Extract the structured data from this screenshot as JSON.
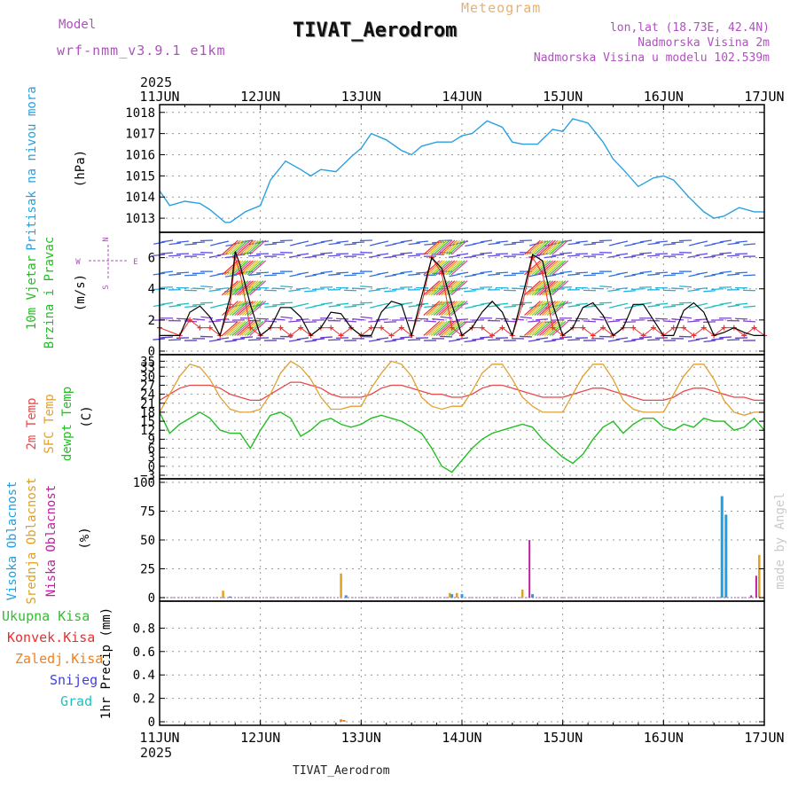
{
  "header": {
    "model_label": "Model",
    "model_name": "wrf-nmm_v3.9.1 e1km",
    "subtitle": "Meteogram",
    "title": "TIVAT_Aerodrom",
    "coords": "lon,lat (18.73E, 42.4N)",
    "elevation": "Nadmorska Visina 2m",
    "model_elevation": "Nadmorska Visina u modelu 102.539m",
    "footer_title": "TIVAT_Aerodrom",
    "watermark": "made by Angel"
  },
  "time_axis": {
    "year": "2025",
    "ticks": [
      "11JUN",
      "12JUN",
      "13JUN",
      "14JUN",
      "15JUN",
      "16JUN",
      "17JUN"
    ]
  },
  "colors": {
    "pressure": "#2aa0e0",
    "temp2m": "#e84848",
    "sfc_temp": "#e0a030",
    "dewpoint": "#20c020",
    "wind_speed": "#000000",
    "gust": "#e83030",
    "high_cloud": "#20a0e0",
    "mid_cloud": "#e0a020",
    "low_cloud": "#c020a0",
    "total_precip": "#30c030",
    "conv_precip": "#e83030",
    "freezing_precip": "#f08020",
    "snow": "#4040e0",
    "graupel": "#20c0c0",
    "title_purple": "#b050c0",
    "meteogram_orange": "#e8b070"
  },
  "chart_data": [
    {
      "type": "line",
      "panel": "pressure",
      "ylabel_name": "Pritisak na nivou mora",
      "ylabel_unit": "(hPa)",
      "yticks": [
        "1013",
        "1014",
        "1015",
        "1016",
        "1017",
        "1018"
      ],
      "ylim": [
        1012.5,
        1018.2
      ],
      "grid": true,
      "x_days": [
        0,
        0.1,
        0.25,
        0.4,
        0.5,
        0.65,
        0.7,
        0.85,
        1.0,
        1.1,
        1.25,
        1.4,
        1.5,
        1.6,
        1.75,
        1.9,
        2.0,
        2.1,
        2.25,
        2.4,
        2.5,
        2.6,
        2.75,
        2.9,
        3.0,
        3.1,
        3.25,
        3.4,
        3.5,
        3.6,
        3.75,
        3.9,
        4.0,
        4.1,
        4.25,
        4.4,
        4.5,
        4.6,
        4.75,
        4.9,
        5.0,
        5.1,
        5.25,
        5.4,
        5.5,
        5.6,
        5.75,
        5.9,
        6.0
      ],
      "series": [
        {
          "color_key": "pressure",
          "values": [
            1014.3,
            1013.6,
            1013.8,
            1013.7,
            1013.4,
            1012.8,
            1012.8,
            1013.3,
            1013.6,
            1014.8,
            1015.7,
            1015.3,
            1015.0,
            1015.3,
            1015.2,
            1015.9,
            1016.3,
            1017.0,
            1016.7,
            1016.2,
            1016.0,
            1016.4,
            1016.6,
            1016.6,
            1016.9,
            1017.0,
            1017.6,
            1017.3,
            1016.6,
            1016.5,
            1016.5,
            1017.2,
            1017.1,
            1017.7,
            1017.5,
            1016.6,
            1015.8,
            1015.3,
            1014.5,
            1014.9,
            1015.0,
            1014.8,
            1014.0,
            1013.3,
            1013.0,
            1013.1,
            1013.5,
            1013.3,
            1013.3
          ]
        }
      ]
    },
    {
      "type": "line",
      "panel": "wind",
      "ylabel_name": "10m Vjetar Brzina i Pravac",
      "ylabel_unit": "(m/s)",
      "compass": {
        "n": "N",
        "s": "S",
        "e": "E",
        "w": "W"
      },
      "yticks": [
        "0",
        "2",
        "4",
        "6"
      ],
      "ylim": [
        0,
        7.4
      ],
      "grid": true,
      "x_days": [
        0,
        0.2,
        0.3,
        0.4,
        0.5,
        0.6,
        0.7,
        0.75,
        0.8,
        0.9,
        1.0,
        1.1,
        1.2,
        1.3,
        1.4,
        1.5,
        1.6,
        1.7,
        1.8,
        1.9,
        2.0,
        2.1,
        2.2,
        2.3,
        2.4,
        2.5,
        2.6,
        2.7,
        2.8,
        2.9,
        3.0,
        3.1,
        3.2,
        3.3,
        3.4,
        3.5,
        3.6,
        3.7,
        3.8,
        3.9,
        4.0,
        4.1,
        4.2,
        4.3,
        4.4,
        4.5,
        4.6,
        4.7,
        4.8,
        4.9,
        5.0,
        5.1,
        5.2,
        5.3,
        5.4,
        5.5,
        5.6,
        5.7,
        5.8,
        5.9,
        6.0
      ],
      "series": [
        {
          "color_key": "wind_speed",
          "values": [
            1.0,
            1.0,
            2.5,
            2.9,
            2.2,
            1.0,
            3.5,
            6.4,
            5.5,
            3.0,
            1.0,
            1.5,
            2.8,
            2.8,
            2.2,
            1.0,
            1.5,
            2.5,
            2.4,
            1.5,
            1.0,
            1.0,
            2.5,
            3.2,
            3.0,
            1.0,
            3.5,
            6.0,
            5.3,
            3.0,
            1.0,
            1.5,
            2.5,
            3.2,
            2.5,
            1.0,
            3.5,
            6.2,
            5.8,
            3.0,
            1.0,
            1.5,
            2.8,
            3.1,
            2.3,
            1.0,
            1.5,
            3.0,
            3.0,
            2.0,
            1.0,
            1.0,
            2.6,
            3.1,
            2.5,
            1.0,
            1.2,
            1.5,
            1.2,
            1.0,
            1.0
          ]
        },
        {
          "color_key": "gust",
          "marker": "+",
          "values": [
            1.5,
            1.0,
            2.0,
            1.5,
            1.5,
            1.0,
            3.0,
            6.0,
            5.0,
            1.5,
            1.0,
            1.5,
            1.5,
            1.0,
            1.5,
            1.0,
            1.5,
            1.5,
            1.0,
            1.5,
            1.0,
            1.5,
            1.5,
            1.0,
            1.5,
            1.0,
            3.0,
            6.0,
            5.0,
            1.5,
            1.0,
            1.5,
            1.5,
            1.0,
            1.5,
            1.0,
            3.0,
            6.0,
            5.0,
            1.5,
            1.0,
            1.5,
            1.5,
            1.0,
            1.5,
            1.0,
            1.5,
            1.5,
            1.0,
            1.5,
            1.0,
            1.5,
            1.5,
            1.0,
            1.5,
            1.0,
            1.5,
            1.5,
            1.0,
            1.5,
            1.0
          ]
        }
      ]
    },
    {
      "type": "line",
      "panel": "temperature",
      "ylabel_names": [
        "2m Temp",
        "SFC Temp",
        "dewpt Temp"
      ],
      "ylabel_unit": "(C)",
      "yticks": [
        "-3",
        "0",
        "3",
        "6",
        "9",
        "12",
        "15",
        "18",
        "21",
        "24",
        "27",
        "30",
        "33",
        "35"
      ],
      "ylim": [
        -3,
        36
      ],
      "grid": true,
      "x_days": [
        0,
        0.1,
        0.2,
        0.3,
        0.4,
        0.5,
        0.6,
        0.7,
        0.8,
        0.9,
        1.0,
        1.1,
        1.2,
        1.3,
        1.4,
        1.5,
        1.6,
        1.7,
        1.8,
        1.9,
        2.0,
        2.1,
        2.2,
        2.3,
        2.4,
        2.5,
        2.6,
        2.7,
        2.8,
        2.9,
        3.0,
        3.1,
        3.2,
        3.3,
        3.4,
        3.5,
        3.6,
        3.7,
        3.8,
        3.9,
        4.0,
        4.1,
        4.2,
        4.3,
        4.4,
        4.5,
        4.6,
        4.7,
        4.8,
        4.9,
        5.0,
        5.1,
        5.2,
        5.3,
        5.4,
        5.5,
        5.6,
        5.7,
        5.8,
        5.9,
        6.0
      ],
      "series": [
        {
          "color_key": "temp2m",
          "values": [
            22,
            24,
            26,
            27,
            27,
            27,
            26,
            24,
            23,
            22,
            22,
            24,
            26,
            28,
            28,
            27,
            26,
            24,
            23,
            23,
            23,
            24,
            26,
            27,
            27,
            26,
            25,
            24,
            24,
            23,
            23,
            24,
            26,
            27,
            27,
            26,
            25,
            24,
            23,
            23,
            23,
            24,
            25,
            26,
            26,
            25,
            24,
            23,
            22,
            22,
            22,
            23,
            25,
            26,
            26,
            25,
            24,
            23,
            23,
            22,
            22
          ]
        },
        {
          "color_key": "sfc_temp",
          "values": [
            18,
            24,
            30,
            34,
            33,
            29,
            23,
            19,
            18,
            18,
            19,
            24,
            31,
            35,
            33,
            29,
            23,
            19,
            19,
            20,
            20,
            26,
            31,
            35,
            34,
            30,
            23,
            20,
            19,
            20,
            20,
            25,
            31,
            34,
            34,
            29,
            23,
            20,
            18,
            18,
            18,
            24,
            30,
            34,
            34,
            29,
            22,
            19,
            18,
            18,
            18,
            24,
            30,
            34,
            34,
            29,
            22,
            18,
            17,
            18,
            18
          ]
        },
        {
          "color_key": "dewpoint",
          "values": [
            18,
            11,
            14,
            16,
            18,
            16,
            12,
            11,
            11,
            6,
            12,
            17,
            18,
            16,
            10,
            12,
            15,
            16,
            14,
            13,
            14,
            16,
            17,
            16,
            15,
            13,
            11,
            6,
            0,
            -2,
            2,
            6,
            9,
            11,
            12,
            13,
            14,
            13,
            9,
            6,
            3,
            1,
            4,
            9,
            13,
            15,
            11,
            14,
            16,
            16,
            13,
            12,
            14,
            13,
            16,
            15,
            15,
            12,
            13,
            16,
            12
          ]
        }
      ]
    },
    {
      "type": "bar",
      "panel": "clouds",
      "ylabel_names": [
        "Visoka Oblacnost",
        "Srednja Oblacnost",
        "Niska Oblacnost"
      ],
      "ylabel_unit": "(%)",
      "yticks": [
        "0",
        "25",
        "50",
        "75",
        "100"
      ],
      "ylim": [
        0,
        100
      ],
      "grid": true,
      "series": [
        {
          "name_key": "high",
          "color_key": "high_cloud",
          "points": [
            [
              0.7,
              1
            ],
            [
              1.85,
              2
            ],
            [
              2.9,
              3
            ],
            [
              3.0,
              3
            ],
            [
              3.7,
              3
            ],
            [
              5.58,
              88
            ],
            [
              5.62,
              72
            ]
          ]
        },
        {
          "name_key": "mid",
          "color_key": "mid_cloud",
          "points": [
            [
              0.63,
              6
            ],
            [
              1.8,
              21
            ],
            [
              2.88,
              4
            ],
            [
              2.95,
              4
            ],
            [
              3.6,
              7
            ],
            [
              5.95,
              37
            ]
          ]
        },
        {
          "name_key": "low",
          "color_key": "low_cloud",
          "points": [
            [
              3.67,
              50
            ],
            [
              5.87,
              2
            ],
            [
              5.92,
              19
            ]
          ]
        }
      ]
    },
    {
      "type": "bar",
      "panel": "precip",
      "legend": [
        "Ukupna Kisa",
        "Konvek.Kisa",
        "Zaledj.Kisa",
        "Snijeg",
        "Grad"
      ],
      "ylabel_unit": "1hr Precip (mm)",
      "yticks": [
        "0",
        "0.2",
        "0.4",
        "0.6",
        "0.8"
      ],
      "ylim": [
        0,
        1.0
      ],
      "grid": true,
      "series": [
        {
          "color_key": "freezing_precip",
          "points": [
            [
              1.8,
              0.02
            ],
            [
              1.83,
              0.015
            ]
          ]
        }
      ]
    }
  ]
}
